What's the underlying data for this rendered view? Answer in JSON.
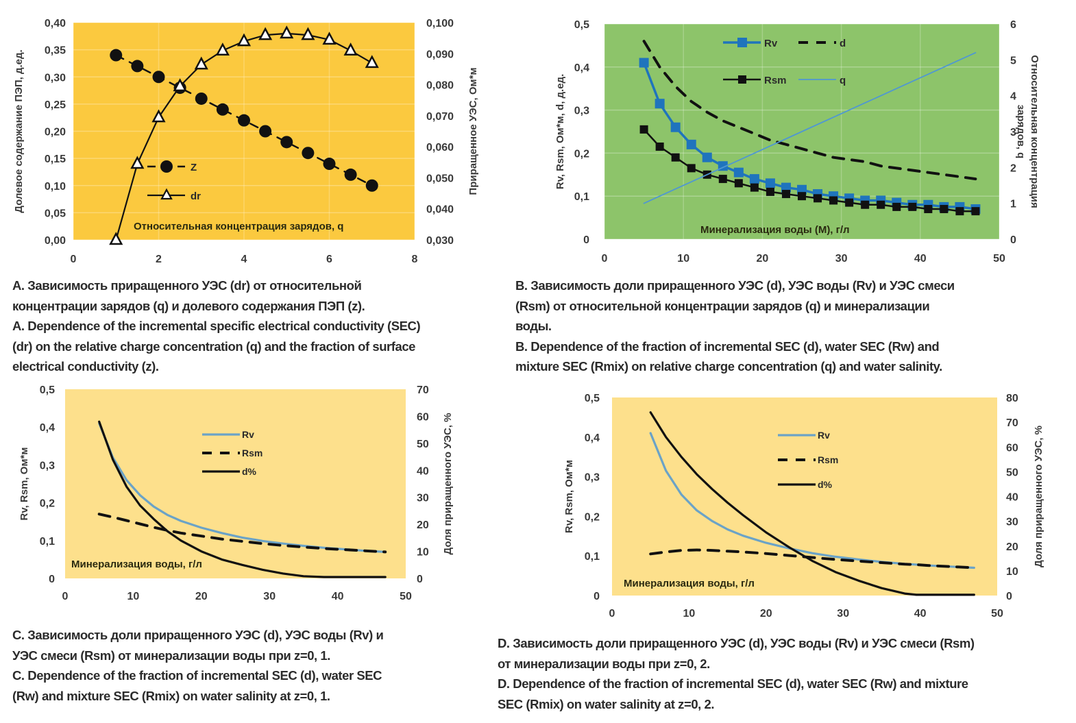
{
  "colors": {
    "panel_yellow_a": "#fbc93f",
    "panel_green_b": "#8dc46a",
    "panel_yellow_light": "#fde08c",
    "rv_blue": "#1f74bd",
    "q_blue": "#4f97d3",
    "rv_light_blue": "#6ba3c7",
    "black": "#111111"
  },
  "chart_data": [
    {
      "id": "A",
      "type": "line",
      "xlabel": "Относительная концентрация зарядов, q",
      "ylabel": "Долевое содержание ПЭП, д.ед.",
      "y2label": "Приращенное УЭС, Ом*м",
      "xlim": [
        0,
        8
      ],
      "ylim": [
        0,
        0.4
      ],
      "y2lim": [
        0.03,
        0.1
      ],
      "x_ticks": [
        "0",
        "2",
        "4",
        "6",
        "8"
      ],
      "y_ticks": [
        "0,00",
        "0,05",
        "0,10",
        "0,15",
        "0,20",
        "0,25",
        "0,30",
        "0,35",
        "0,40"
      ],
      "y2_ticks": [
        "0,030",
        "0,040",
        "0,050",
        "0,060",
        "0,070",
        "0,080",
        "0,090",
        "0,100"
      ],
      "grid": true,
      "legend_position": "middle-left",
      "x": [
        1,
        1.5,
        2,
        2.5,
        3,
        3.5,
        4,
        4.5,
        5,
        5.5,
        6,
        6.5,
        7
      ],
      "series": [
        {
          "name": "Z",
          "axis": "left",
          "style": "dashed-circle",
          "values": [
            0.34,
            0.32,
            0.3,
            0.28,
            0.26,
            0.24,
            0.22,
            0.2,
            0.18,
            0.16,
            0.14,
            0.12,
            0.1
          ]
        },
        {
          "name": "dr",
          "axis": "right",
          "style": "solid-triangle",
          "values": [
            0.03,
            0.0545,
            0.0695,
            0.0795,
            0.0865,
            0.091,
            0.094,
            0.096,
            0.0965,
            0.096,
            0.0945,
            0.091,
            0.087
          ]
        }
      ]
    },
    {
      "id": "B",
      "type": "line",
      "xlabel": "Минерализация воды (М), г/л",
      "ylabel": "Rv, Rsm, Ом*м, d, д.ед.",
      "y2label": "Относительная концентрация зарядов, q",
      "xlim": [
        0,
        50
      ],
      "ylim": [
        0,
        0.5
      ],
      "y2lim": [
        0,
        6
      ],
      "x_ticks": [
        "0",
        "10",
        "20",
        "30",
        "40",
        "50"
      ],
      "y_ticks": [
        "0",
        "0,1",
        "0,2",
        "0,3",
        "0,4",
        "0,5"
      ],
      "y2_ticks": [
        "0",
        "1",
        "2",
        "3",
        "4",
        "5",
        "6"
      ],
      "grid": true,
      "legend_position": "top-left",
      "x": [
        5,
        7,
        9,
        11,
        13,
        15,
        17,
        19,
        21,
        23,
        25,
        27,
        29,
        31,
        33,
        35,
        37,
        39,
        41,
        43,
        45,
        47
      ],
      "series": [
        {
          "name": "Rv",
          "axis": "left",
          "style": "blue-square",
          "values": [
            0.41,
            0.315,
            0.26,
            0.22,
            0.19,
            0.17,
            0.155,
            0.14,
            0.13,
            0.12,
            0.115,
            0.105,
            0.1,
            0.095,
            0.09,
            0.09,
            0.085,
            0.08,
            0.08,
            0.075,
            0.075,
            0.07
          ]
        },
        {
          "name": "d",
          "axis": "left",
          "style": "black-dashed",
          "values": [
            0.46,
            0.4,
            0.355,
            0.32,
            0.295,
            0.275,
            0.26,
            0.245,
            0.23,
            0.22,
            0.21,
            0.2,
            0.19,
            0.185,
            0.18,
            0.17,
            0.165,
            0.16,
            0.155,
            0.15,
            0.145,
            0.14
          ]
        },
        {
          "name": "Rsm",
          "axis": "left",
          "style": "black-square",
          "values": [
            0.255,
            0.215,
            0.19,
            0.165,
            0.15,
            0.14,
            0.13,
            0.12,
            0.11,
            0.105,
            0.1,
            0.095,
            0.09,
            0.085,
            0.08,
            0.08,
            0.075,
            0.075,
            0.07,
            0.07,
            0.065,
            0.065
          ]
        },
        {
          "name": "q",
          "axis": "right",
          "style": "blue-thin",
          "values": [
            1.0,
            1.2,
            1.4,
            1.6,
            1.8,
            2.0,
            2.2,
            2.4,
            2.6,
            2.8,
            3.0,
            3.2,
            3.4,
            3.6,
            3.8,
            4.0,
            4.2,
            4.4,
            4.6,
            4.8,
            5.0,
            5.2
          ]
        }
      ]
    },
    {
      "id": "C",
      "type": "line",
      "xlabel": "Минерализация воды, г/л",
      "ylabel": "Rv, Rsm, Ом*м",
      "y2label": "Доля приращенного УЭС, %",
      "xlim": [
        0,
        50
      ],
      "ylim": [
        0,
        0.5
      ],
      "y2lim": [
        0,
        70
      ],
      "x_ticks": [
        "0",
        "10",
        "20",
        "30",
        "40",
        "50"
      ],
      "y_ticks": [
        "0",
        "0,1",
        "0,2",
        "0,3",
        "0,4",
        "0,5"
      ],
      "y2_ticks": [
        "0",
        "10",
        "20",
        "30",
        "40",
        "50",
        "60",
        "70"
      ],
      "grid": false,
      "legend_position": "top-center",
      "x": [
        5,
        7,
        9,
        11,
        13,
        15,
        17,
        20,
        23,
        26,
        29,
        32,
        35,
        38,
        41,
        44,
        47
      ],
      "series": [
        {
          "name": "Rv",
          "axis": "left",
          "style": "light-blue",
          "values": [
            0.41,
            0.32,
            0.26,
            0.22,
            0.19,
            0.168,
            0.152,
            0.134,
            0.12,
            0.108,
            0.099,
            0.092,
            0.086,
            0.081,
            0.077,
            0.073,
            0.07
          ]
        },
        {
          "name": "Rsm",
          "axis": "left",
          "style": "black-dashed",
          "values": [
            0.17,
            0.162,
            0.153,
            0.144,
            0.135,
            0.127,
            0.12,
            0.112,
            0.104,
            0.098,
            0.092,
            0.087,
            0.083,
            0.079,
            0.076,
            0.073,
            0.07
          ]
        },
        {
          "name": "d%",
          "axis": "right",
          "style": "black-solid",
          "values": [
            58,
            44,
            34,
            27,
            22,
            17.5,
            14,
            10,
            7,
            5,
            3.2,
            1.8,
            0.8,
            0.5,
            0.5,
            0.5,
            0.5
          ]
        }
      ]
    },
    {
      "id": "D",
      "type": "line",
      "xlabel": "Минерализация воды, г/л",
      "ylabel": "Rv, Rsm, Ом*м",
      "y2label": "Доля приращенного УЭС, %",
      "xlim": [
        0,
        50
      ],
      "ylim": [
        0,
        0.5
      ],
      "y2lim": [
        0,
        80
      ],
      "x_ticks": [
        "0",
        "10",
        "20",
        "30",
        "40",
        "50"
      ],
      "y_ticks": [
        "0",
        "0,1",
        "0,2",
        "0,3",
        "0,4",
        "0,5"
      ],
      "y2_ticks": [
        "0",
        "10",
        "20",
        "30",
        "40",
        "50",
        "60",
        "70",
        "80"
      ],
      "grid": false,
      "legend_position": "top-right",
      "x": [
        5,
        7,
        9,
        11,
        13,
        15,
        17,
        20,
        23,
        26,
        29,
        32,
        35,
        38,
        39.5,
        41,
        44,
        47
      ],
      "series": [
        {
          "name": "Rv",
          "axis": "left",
          "style": "light-blue",
          "values": [
            0.41,
            0.315,
            0.255,
            0.215,
            0.188,
            0.167,
            0.151,
            0.133,
            0.119,
            0.107,
            0.098,
            0.091,
            0.085,
            0.08,
            0.078,
            0.076,
            0.073,
            0.07
          ]
        },
        {
          "name": "Rsm",
          "axis": "left",
          "style": "black-dashed",
          "values": [
            0.105,
            0.11,
            0.114,
            0.115,
            0.114,
            0.112,
            0.11,
            0.106,
            0.101,
            0.096,
            0.091,
            0.087,
            0.083,
            0.079,
            0.078,
            0.076,
            0.073,
            0.07
          ]
        },
        {
          "name": "d%",
          "axis": "right",
          "style": "black-solid",
          "values": [
            74,
            64,
            56,
            49,
            43,
            37.5,
            32.5,
            25.5,
            19.5,
            14,
            9.5,
            6,
            3,
            0.8,
            0.3,
            0.3,
            0.3,
            0.3
          ]
        }
      ]
    }
  ],
  "captions": {
    "A": [
      "А. Зависимость приращенного УЭС (dr) от относительной",
      "концентрации зарядов (q) и  долевого содержания ПЭП (z).",
      "A. Dependence of the incremental specific electrical conductivity (SEC)",
      "(dr) on the relative charge concentration (q) and the fraction of surface",
      "electrical conductivity (z)."
    ],
    "B": [
      "B. Зависимость доли приращенного УЭС (d), УЭС воды (Rv) и УЭС смеси",
      "(Rsm) от относительной концентрации зарядов (q) и  минерализации",
      "воды.",
      "B. Dependence of the fraction of incremental SEC (d), water SEC (Rw) and",
      "mixture SEC (Rmix) on relative charge concentration (q) and water salinity."
    ],
    "C": [
      "С. Зависимость доли приращенного УЭС (d), УЭС воды (Rv) и",
      "УЭС смеси (Rsm) от минерализации воды при z=0, 1.",
      "C. Dependence of the fraction of incremental SEC (d), water SEC",
      "(Rw) and mixture SEC (Rmix) on water salinity at z=0, 1."
    ],
    "D": [
      "D. Зависимость доли приращенного УЭС (d), УЭС воды  (Rv) и УЭС смеси (Rsm)",
      "от  минерализации воды при z=0, 2.",
      "D. Dependence of the fraction of incremental SEC (d), water SEC (Rw) and mixture",
      "SEC (Rmix) on water salinity at z=0, 2."
    ]
  }
}
